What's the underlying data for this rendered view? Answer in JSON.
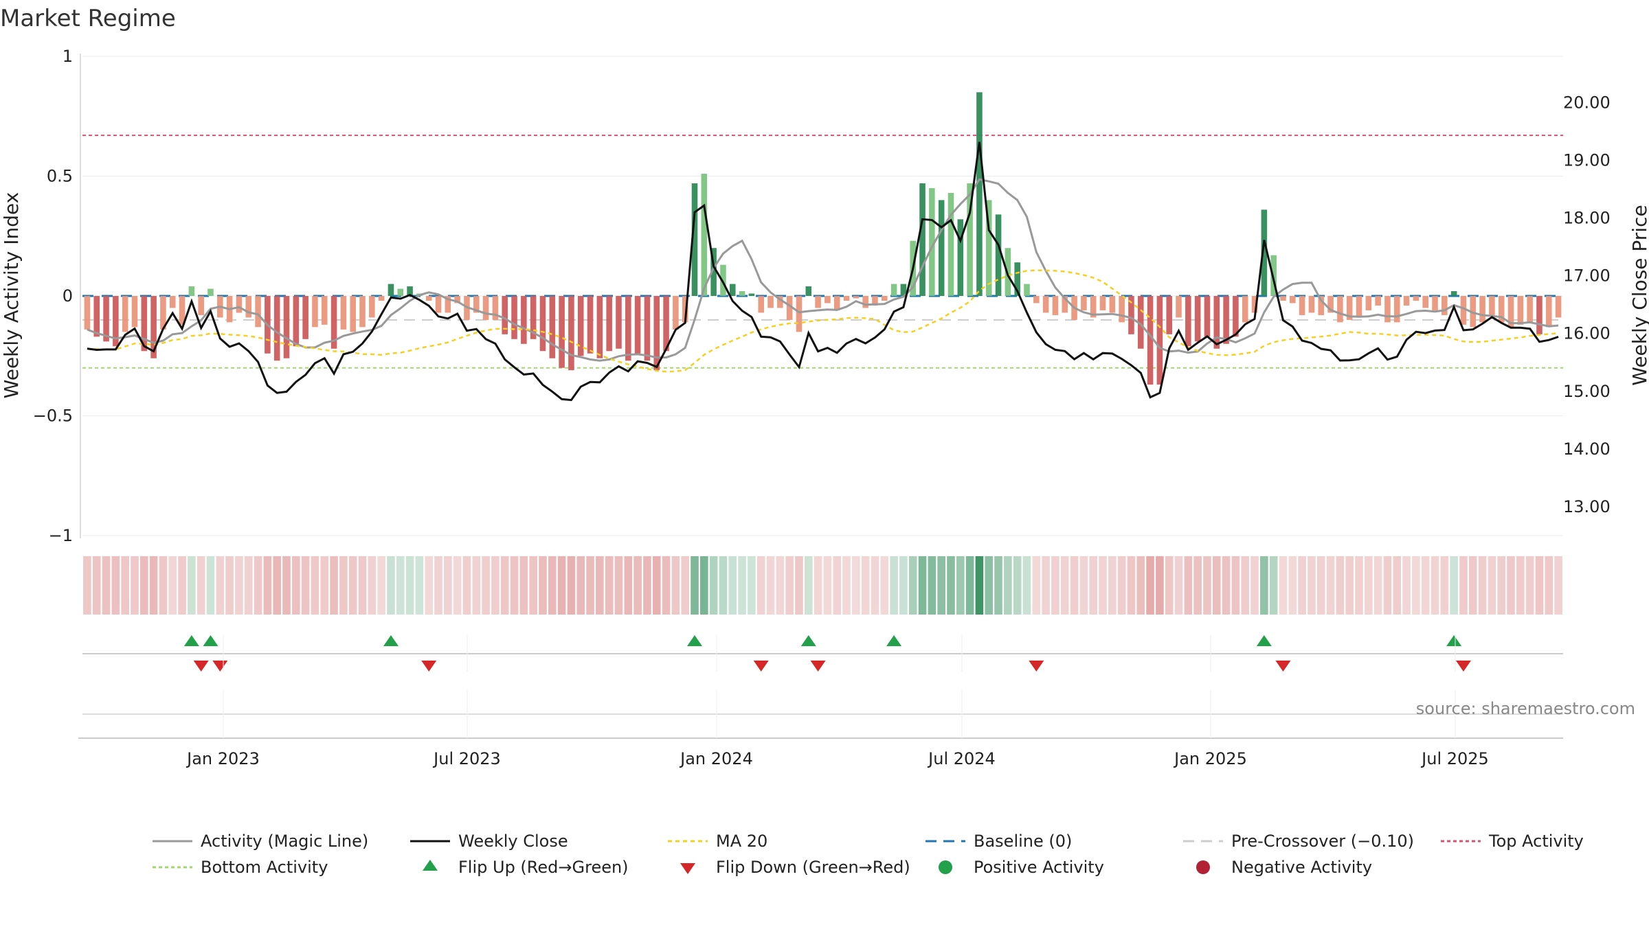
{
  "chart_data": {
    "type": "bar",
    "title": "Market Regime",
    "ylabel_left": "Weekly Activity Index",
    "ylabel_right": "Weekly Close Price",
    "source": "source: sharemaestro.com",
    "x_tick_labels": [
      "Jan 2023",
      "Jul 2023",
      "Jan 2024",
      "Jul 2024",
      "Jan 2025",
      "Jul 2025"
    ],
    "y_left_ticks": [
      {
        "v": 1,
        "label": "1"
      },
      {
        "v": 0.5,
        "label": "0.5"
      },
      {
        "v": 0,
        "label": "0"
      },
      {
        "v": -0.5,
        "label": "−0.5"
      },
      {
        "v": -1,
        "label": "−1"
      }
    ],
    "y_right_ticks": [
      "13.00",
      "14.00",
      "15.00",
      "16.00",
      "17.00",
      "18.00",
      "19.00",
      "20.00"
    ],
    "ylim_left": [
      -1,
      1
    ],
    "ylim_right": [
      12.5,
      20.8
    ],
    "reference_lines": {
      "top_activity": 0.67,
      "bottom_activity": -0.3,
      "pre_crossover": -0.1,
      "baseline": 0
    },
    "weeks": 156,
    "activity": [
      -0.14,
      -0.17,
      -0.19,
      -0.21,
      -0.15,
      -0.13,
      -0.23,
      -0.26,
      -0.14,
      -0.05,
      -0.12,
      0.04,
      -0.08,
      0.03,
      -0.09,
      -0.11,
      -0.07,
      -0.09,
      -0.13,
      -0.24,
      -0.27,
      -0.26,
      -0.21,
      -0.18,
      -0.13,
      -0.12,
      -0.22,
      -0.14,
      -0.15,
      -0.13,
      -0.09,
      -0.02,
      0.05,
      0.03,
      0.04,
      0.01,
      -0.02,
      -0.07,
      -0.07,
      -0.03,
      -0.1,
      -0.07,
      -0.1,
      -0.1,
      -0.16,
      -0.18,
      -0.2,
      -0.18,
      -0.23,
      -0.26,
      -0.3,
      -0.31,
      -0.25,
      -0.24,
      -0.26,
      -0.23,
      -0.22,
      -0.27,
      -0.24,
      -0.27,
      -0.31,
      -0.23,
      -0.14,
      -0.11,
      0.47,
      0.51,
      0.2,
      0.13,
      0.05,
      0.02,
      0.01,
      -0.07,
      -0.05,
      -0.05,
      -0.1,
      -0.15,
      0.04,
      -0.05,
      -0.03,
      -0.06,
      -0.02,
      -0.01,
      -0.05,
      -0.04,
      -0.02,
      0.05,
      0.05,
      0.23,
      0.47,
      0.45,
      0.4,
      0.43,
      0.32,
      0.47,
      0.85,
      0.4,
      0.34,
      0.2,
      0.14,
      0.05,
      -0.03,
      -0.07,
      -0.08,
      -0.07,
      -0.1,
      -0.06,
      -0.09,
      -0.06,
      -0.07,
      -0.11,
      -0.16,
      -0.22,
      -0.37,
      -0.37,
      -0.16,
      -0.09,
      -0.21,
      -0.19,
      -0.17,
      -0.22,
      -0.2,
      -0.17,
      -0.11,
      -0.07,
      0.36,
      0.17,
      -0.02,
      -0.03,
      -0.08,
      -0.07,
      -0.08,
      -0.07,
      -0.11,
      -0.1,
      -0.09,
      -0.06,
      -0.04,
      -0.11,
      -0.11,
      -0.04,
      -0.02,
      -0.05,
      -0.06,
      -0.08,
      0.02,
      -0.12,
      -0.13,
      -0.11,
      -0.08,
      -0.11,
      -0.13,
      -0.12,
      -0.11,
      -0.16,
      -0.13,
      -0.09
    ]
  },
  "legend": {
    "magic_line": "Activity (Magic Line)",
    "weekly_close": "Weekly Close",
    "ma20": "MA 20",
    "baseline": "Baseline (0)",
    "pre_crossover": "Pre-Crossover (−0.10)",
    "top_activity": "Top Activity",
    "bottom_activity": "Bottom Activity",
    "flip_up": "Flip Up (Red→Green)",
    "flip_down": "Flip Down (Green→Red)",
    "positive_activity": "Positive Activity",
    "negative_activity": "Negative Activity"
  },
  "colors": {
    "pos_dark": "#2e8b57",
    "pos_light": "#7cc47f",
    "neg_dark": "#cd5c5c",
    "neg_light": "#e9967a",
    "close": "#111111",
    "magic": "#999999",
    "ma20": "#f5d020",
    "baseline": "#1f77b4",
    "top": "#d6536d",
    "bottom": "#9fd86b",
    "flip_up": "#22a04a",
    "flip_down": "#d62728"
  }
}
